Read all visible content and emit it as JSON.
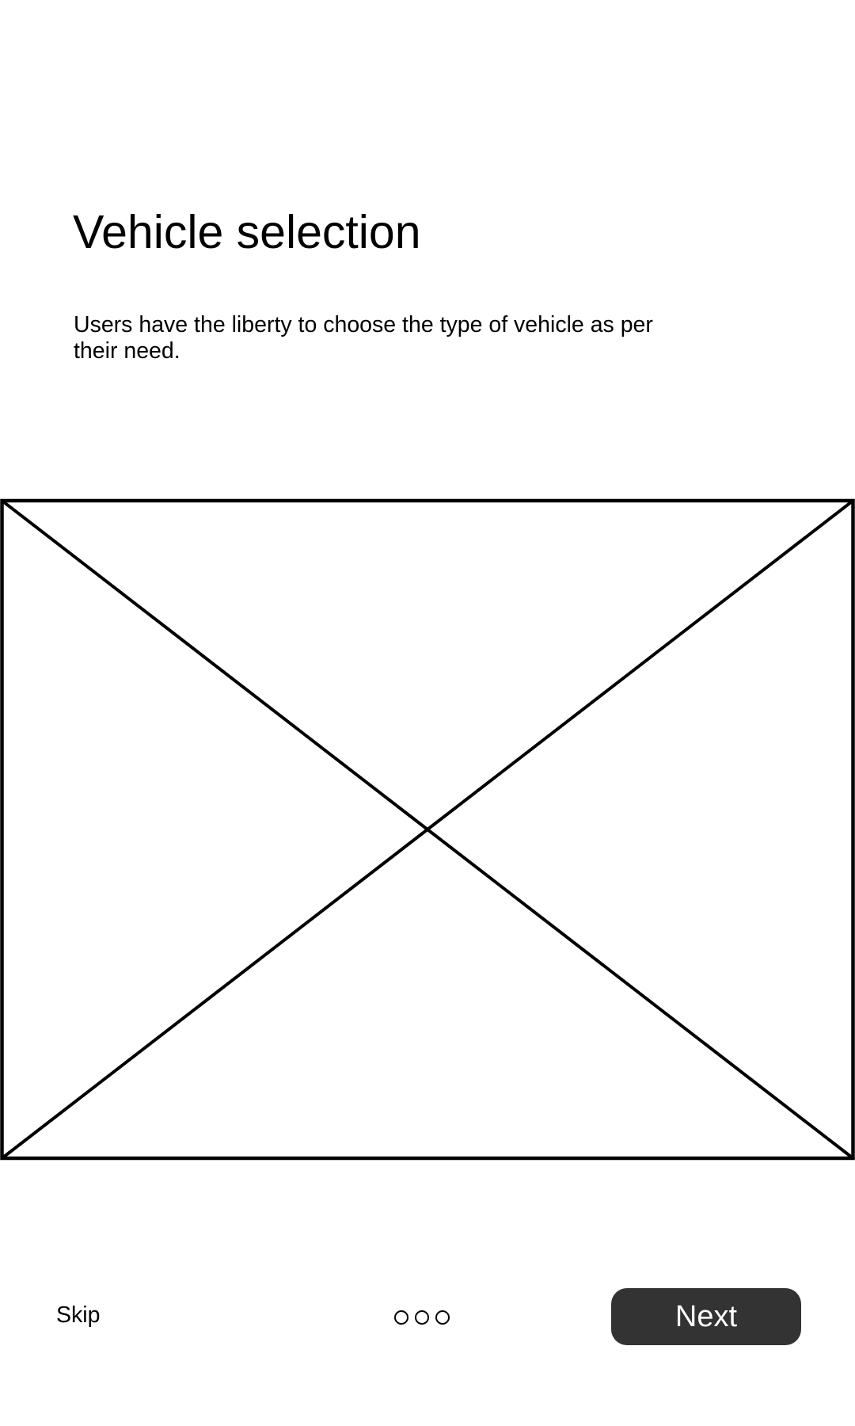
{
  "onboarding": {
    "title": "Vehicle selection",
    "description": "Users have the liberty to choose the type of vehicle as per their need."
  },
  "footer": {
    "skip_label": "Skip",
    "next_label": "Next",
    "page_indicator": {
      "total": 3
    }
  },
  "colors": {
    "background": "#ffffff",
    "text": "#000000",
    "button_background": "#333333",
    "button_text": "#ffffff"
  },
  "icons": {
    "image_placeholder": "image-placeholder-icon",
    "page_dot": "page-dot-icon"
  }
}
